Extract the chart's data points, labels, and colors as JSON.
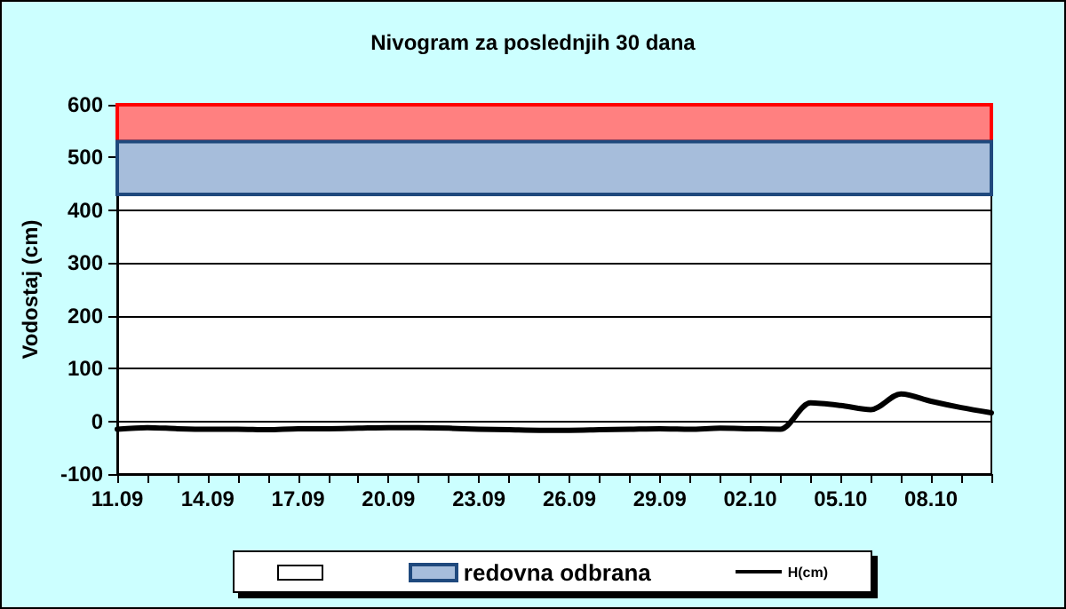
{
  "chart_data": {
    "type": "line",
    "title": "Nivogram za poslednjih 30 dana",
    "ylabel": "Vodostaj (cm)",
    "categories": [
      "11.09",
      null,
      null,
      "14.09",
      null,
      null,
      "17.09",
      null,
      null,
      "20.09",
      null,
      null,
      "23.09",
      null,
      null,
      "26.09",
      null,
      null,
      "29.09",
      null,
      null,
      "02.10",
      null,
      null,
      "05.10",
      null,
      null,
      "08.10",
      null,
      null
    ],
    "series": [
      {
        "name": "H(cm)",
        "color": "#000000",
        "values": [
          -15,
          -12,
          -14,
          -15,
          -15,
          -16,
          -14,
          -14,
          -13,
          -12,
          -12,
          -13,
          -15,
          -16,
          -17,
          -17,
          -16,
          -15,
          -14,
          -15,
          -13,
          -14,
          -15,
          35,
          30,
          22,
          52,
          38,
          26,
          16
        ]
      }
    ],
    "bands": [
      {
        "axis": "y",
        "from": 530,
        "to": 600,
        "color": "#ff8080"
      },
      {
        "axis": "y",
        "from": 430,
        "to": 530,
        "label": "redovna odbrana",
        "color": "#a6bddb"
      }
    ],
    "ylim": [
      -100,
      600
    ],
    "yticks": [
      -100,
      0,
      100,
      200,
      300,
      400,
      500,
      600
    ],
    "grid": "y",
    "legend": "bottom",
    "marker": "none",
    "line_style": "solid"
  }
}
